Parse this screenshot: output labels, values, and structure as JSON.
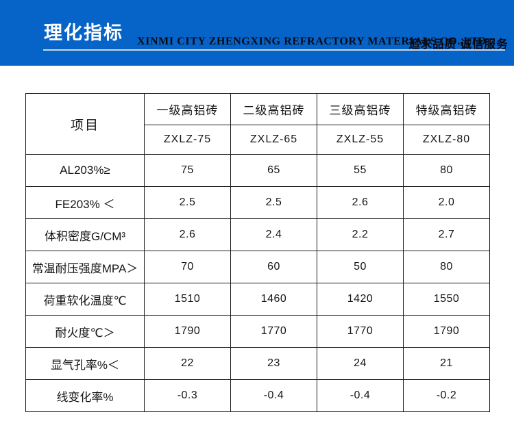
{
  "header": {
    "title": "理化指标",
    "company": "XINMI CITY ZHENGXING REFRACTORY MATERIALS CO.,LTD",
    "slogan": "追求品质  诚信服务",
    "banner_color": "#0663c7",
    "title_color": "#ffffff",
    "text_color": "#0a0a12",
    "separator_color": "#ccd7e6"
  },
  "table": {
    "item_header": "项目",
    "border_color": "#1a1a1a",
    "columns": [
      {
        "grade": "一级高铝砖",
        "model": "ZXLZ-75"
      },
      {
        "grade": "二级高铝砖",
        "model": "ZXLZ-65"
      },
      {
        "grade": "三级高铝砖",
        "model": "ZXLZ-55"
      },
      {
        "grade": "特级高铝砖",
        "model": "ZXLZ-80"
      }
    ],
    "rows": [
      {
        "label": "AL203%≥",
        "values": [
          "75",
          "65",
          "55",
          "80"
        ]
      },
      {
        "label": "FE203% ＜",
        "values": [
          "2.5",
          "2.5",
          "2.6",
          "2.0"
        ]
      },
      {
        "label": "体积密度G/CM³",
        "values": [
          "2.6",
          "2.4",
          "2.2",
          "2.7"
        ]
      },
      {
        "label": "常温耐压强度MPA＞",
        "values": [
          "70",
          "60",
          "50",
          "80"
        ]
      },
      {
        "label": "荷重软化温度℃",
        "values": [
          "1510",
          "1460",
          "1420",
          "1550"
        ]
      },
      {
        "label": "耐火度℃＞",
        "values": [
          "1790",
          "1770",
          "1770",
          "1790"
        ]
      },
      {
        "label": "显气孔率%＜",
        "values": [
          "22",
          "23",
          "24",
          "21"
        ]
      },
      {
        "label": "线变化率%",
        "values": [
          "-0.3",
          "-0.4",
          "-0.4",
          "-0.2"
        ]
      }
    ]
  }
}
